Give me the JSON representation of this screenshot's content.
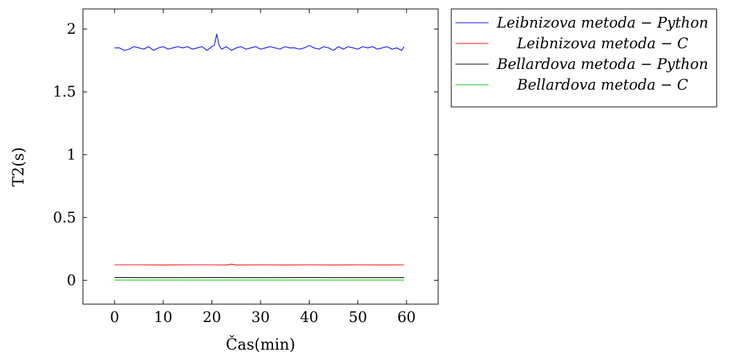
{
  "chart_data": {
    "type": "line",
    "title": "",
    "xlabel": "Čas(min)",
    "ylabel": "T2(s)",
    "xlim": [
      -6.5,
      66.5
    ],
    "ylim": [
      -0.19,
      2.16
    ],
    "xticks": [
      0,
      10,
      20,
      30,
      40,
      50,
      60
    ],
    "yticks": [
      0,
      0.5,
      1,
      1.5,
      2
    ],
    "xtick_labels": [
      "0",
      "10",
      "20",
      "30",
      "40",
      "50",
      "60"
    ],
    "ytick_labels": [
      "0",
      "0.5",
      "1",
      "1.5",
      "2"
    ],
    "grid": false,
    "legend_position": "outside-top-right",
    "series": [
      {
        "name": "Leibnizova metoda − Python",
        "color": "#0000ff",
        "x": [
          0,
          1,
          2,
          3,
          4,
          5,
          6,
          7,
          8,
          9,
          10,
          11,
          12,
          13,
          14,
          15,
          16,
          17,
          18,
          19,
          20,
          20.5,
          21,
          21.5,
          22,
          23,
          24,
          25,
          26,
          27,
          28,
          29,
          30,
          31,
          32,
          33,
          34,
          35,
          36,
          37,
          38,
          39,
          40,
          41,
          42,
          43,
          44,
          45,
          46,
          47,
          48,
          49,
          50,
          51,
          52,
          53,
          54,
          55,
          56,
          57,
          58,
          59,
          59.5
        ],
        "y": [
          1.85,
          1.85,
          1.83,
          1.84,
          1.86,
          1.85,
          1.84,
          1.86,
          1.83,
          1.85,
          1.86,
          1.84,
          1.85,
          1.86,
          1.85,
          1.86,
          1.84,
          1.85,
          1.86,
          1.83,
          1.86,
          1.87,
          1.96,
          1.87,
          1.84,
          1.86,
          1.83,
          1.85,
          1.86,
          1.84,
          1.85,
          1.86,
          1.84,
          1.85,
          1.86,
          1.85,
          1.84,
          1.86,
          1.85,
          1.85,
          1.84,
          1.85,
          1.87,
          1.85,
          1.84,
          1.86,
          1.85,
          1.83,
          1.86,
          1.84,
          1.86,
          1.85,
          1.84,
          1.86,
          1.85,
          1.86,
          1.84,
          1.85,
          1.86,
          1.84,
          1.85,
          1.83,
          1.86
        ]
      },
      {
        "name": "Leibnizova metoda − C",
        "color": "#ff0000",
        "x": [
          0,
          5,
          10,
          15,
          20,
          23,
          24,
          25,
          30,
          35,
          40,
          45,
          50,
          55,
          59.5
        ],
        "y": [
          0.123,
          0.123,
          0.122,
          0.123,
          0.123,
          0.122,
          0.128,
          0.122,
          0.123,
          0.122,
          0.123,
          0.122,
          0.123,
          0.122,
          0.123
        ]
      },
      {
        "name": "Bellardova metoda − Python",
        "color": "#000000",
        "x": [
          0,
          10,
          20,
          30,
          40,
          50,
          59.5
        ],
        "y": [
          0.022,
          0.021,
          0.022,
          0.021,
          0.022,
          0.021,
          0.021
        ]
      },
      {
        "name": "Bellardova metoda − C",
        "color": "#00cc00",
        "x": [
          0,
          10,
          20,
          30,
          40,
          50,
          59.5
        ],
        "y": [
          0.002,
          0.002,
          0.002,
          0.002,
          0.002,
          0.002,
          0.002
        ]
      }
    ]
  }
}
